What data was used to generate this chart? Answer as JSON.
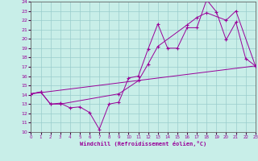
{
  "xlabel": "Windchill (Refroidissement éolien,°C)",
  "background_color": "#c8eee8",
  "grid_color": "#99cccc",
  "line_color": "#990099",
  "xlim": [
    0,
    23
  ],
  "ylim": [
    10,
    24
  ],
  "xticks": [
    0,
    1,
    2,
    3,
    4,
    5,
    6,
    7,
    8,
    9,
    10,
    11,
    12,
    13,
    14,
    15,
    16,
    17,
    18,
    19,
    20,
    21,
    22,
    23
  ],
  "yticks": [
    10,
    11,
    12,
    13,
    14,
    15,
    16,
    17,
    18,
    19,
    20,
    21,
    22,
    23,
    24
  ],
  "line1_x": [
    0,
    1,
    2,
    3,
    4,
    5,
    6,
    7,
    8,
    9,
    10,
    11,
    12,
    13,
    14,
    15,
    16,
    17,
    18,
    19,
    20,
    21,
    22,
    23
  ],
  "line1_y": [
    14.1,
    14.3,
    13.0,
    13.1,
    12.6,
    12.7,
    12.1,
    10.3,
    13.0,
    13.2,
    15.8,
    16.0,
    18.9,
    21.6,
    19.0,
    19.0,
    21.2,
    21.2,
    24.2,
    22.9,
    19.9,
    21.8,
    17.9,
    17.1
  ],
  "line2_x": [
    0,
    1,
    2,
    3,
    9,
    11,
    12,
    13,
    16,
    17,
    18,
    20,
    21,
    23
  ],
  "line2_y": [
    14.1,
    14.3,
    13.0,
    13.0,
    14.1,
    15.5,
    17.3,
    19.2,
    21.5,
    22.3,
    22.8,
    22.0,
    23.0,
    17.1
  ],
  "line3_x": [
    0,
    23
  ],
  "line3_y": [
    14.1,
    17.1
  ]
}
